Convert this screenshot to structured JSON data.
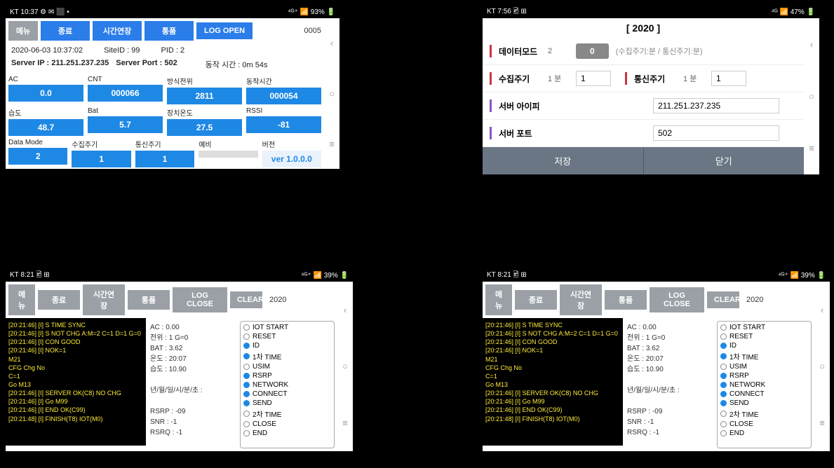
{
  "panelA": {
    "status": {
      "left": "KT 10:37 ⚙ ✉ ⬛ •",
      "right": "⁴ᴳ⁺ 📶 93% 🔋"
    },
    "toolbar": {
      "menu": "메뉴",
      "exit": "종료",
      "extend": "시간연장",
      "product": "통품",
      "logopen": "LOG OPEN",
      "counter": "0005"
    },
    "info1": {
      "ts": "2020-06-03 10:37:02",
      "site": "SiteID : 99",
      "pid": "PID : 2"
    },
    "info2": {
      "ip": "Server IP : 211.251.237.235",
      "port": "Server Port : 502",
      "uptime": "동작 시간 : 0m 54s"
    },
    "row1": [
      {
        "l": "AC",
        "v": "0.0"
      },
      {
        "l": "CNT",
        "v": "000066"
      },
      {
        "l": "방식전위",
        "v": "2811"
      },
      {
        "l": "동작시간",
        "v": "000054"
      }
    ],
    "row2": [
      {
        "l": "습도",
        "v": "48.7"
      },
      {
        "l": "Bat",
        "v": "5.7"
      },
      {
        "l": "장치온도",
        "v": "27.5"
      },
      {
        "l": "RSSI",
        "v": "-81"
      }
    ],
    "row3": [
      {
        "l": "Data Mode",
        "v": "2"
      },
      {
        "l": "수집주기",
        "v": "1"
      },
      {
        "l": "통신주기",
        "v": "1"
      },
      {
        "l": "예비",
        "v": ""
      },
      {
        "l": "버전",
        "v": "ver 1.0.0.0"
      }
    ]
  },
  "panelB": {
    "status": {
      "left": "KT 7:56 🖻 ⊞",
      "right": "⁴ᴳ 📶 47% 🔋"
    },
    "title": "[ 2020 ]",
    "rows": {
      "datamode": {
        "bar": "#cc3344",
        "label": "데이터모드",
        "sub": "2",
        "toggle": "0",
        "hint": "(수집주기:분 / 통신주기:분)"
      },
      "collect": {
        "bar": "#cc3344",
        "label": "수집주기",
        "sub": "1  분",
        "val": "1",
        "label2": "통신주기",
        "sub2": "1  분",
        "val2": "1"
      },
      "ip": {
        "bar": "#8855cc",
        "label": "서버 아이피",
        "val": "211.251.237.235"
      },
      "port": {
        "bar": "#8855cc",
        "label": "서버 포트",
        "val": "502"
      }
    },
    "btns": {
      "save": "저장",
      "close": "닫기"
    }
  },
  "panelLog": {
    "status": {
      "left": "KT 8:21 🖻 ⊞",
      "right": "⁴ᴳ⁺ 📶 39% 🔋"
    },
    "toolbar": {
      "menu": "메뉴",
      "exit": "종료",
      "extend": "시간연장",
      "product": "통품",
      "logclose": "LOG CLOSE",
      "clear": "CLEAR",
      "year": "2020"
    },
    "logs": [
      "[20:21:46] [I] S TIME SYNC",
      "[20:21:46] [I] S NOT CHG A:M=2 C=1 D=1 G=0",
      "[20:21:46] [I] CON GOOD",
      "[20:21:46] [I] NOK=1\nM21\nCFG Chg No\nC=1\nGo M13",
      "[20:21:46] [I] SERVER OK(C8) NO CHG",
      "[20:21:46] [I] Go M99",
      "[20:21:46] [I] END OK(C99)",
      "[20:21:48] [I] FINISH(T8) IOT(M0)"
    ],
    "mid": [
      "AC :  0.00",
      "전위 :  1 G=0",
      "BAT :  3.62",
      "온도 :  20:07",
      "습도 :  10.90",
      "",
      "년/월/일/시/분/초 :",
      "",
      "RSRP :  -09",
      "SNR :  -1",
      "RSRQ :  -1"
    ],
    "radios": [
      {
        "t": "IOT START",
        "on": false
      },
      {
        "t": "RESET",
        "on": false
      },
      {
        "t": "ID",
        "on": true
      },
      {
        "t": "1차 TIME",
        "on": true
      },
      {
        "t": "USIM",
        "on": false
      },
      {
        "t": "RSRP",
        "on": true
      },
      {
        "t": "NETWORK",
        "on": true
      },
      {
        "t": "CONNECT",
        "on": true
      },
      {
        "t": "SEND",
        "on": true
      },
      {
        "t": "2차 TIME",
        "on": false
      },
      {
        "t": "CLOSE",
        "on": false
      },
      {
        "t": "END",
        "on": false
      }
    ]
  }
}
